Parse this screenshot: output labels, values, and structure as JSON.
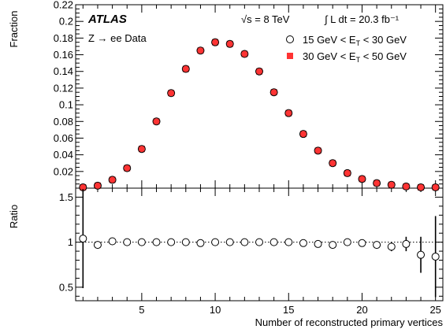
{
  "chart_data": {
    "type": "scatter",
    "experiment_label": "ATLAS",
    "dataset_label": "Z → ee Data",
    "energy_label": "√s = 8 TeV",
    "lumi_label": "∫ L dt = 20.3 fb⁻¹",
    "xlabel": "Number of reconstructed primary vertices",
    "top_panel": {
      "ylabel": "Fraction",
      "xlim": [
        0.5,
        25.5
      ],
      "ylim": [
        0,
        0.22
      ],
      "yticks": [
        "0.02",
        "0.04",
        "0.06",
        "0.08",
        "0.1",
        "0.12",
        "0.14",
        "0.16",
        "0.18",
        "0.2",
        "0.22"
      ],
      "ytick_values": [
        0.02,
        0.04,
        0.06,
        0.08,
        0.1,
        0.12,
        0.14,
        0.16,
        0.18,
        0.2,
        0.22
      ],
      "legend_position": "top-right",
      "series": [
        {
          "name": "15 GeV < E_T < 30 GeV",
          "legend_main": "15 GeV < E",
          "legend_sub": "T",
          "legend_tail": " < 30 GeV",
          "marker": "open-circle",
          "color": "#000000",
          "x": [
            1,
            2,
            3,
            4,
            5,
            6,
            7,
            8,
            9,
            10,
            11,
            12,
            13,
            14,
            15,
            16,
            17,
            18,
            19,
            20,
            21,
            22,
            23,
            24,
            25
          ],
          "values": [
            0.001,
            0.003,
            0.01,
            0.024,
            0.047,
            0.08,
            0.114,
            0.143,
            0.165,
            0.175,
            0.173,
            0.161,
            0.14,
            0.115,
            0.09,
            0.065,
            0.045,
            0.03,
            0.018,
            0.011,
            0.006,
            0.004,
            0.002,
            0.001,
            0.001
          ]
        },
        {
          "name": "30 GeV < E_T < 50 GeV",
          "legend_main": "30 GeV < E",
          "legend_sub": "T",
          "legend_tail": " < 50 GeV",
          "marker": "filled-square",
          "color": "#ff3333",
          "x": [
            1,
            2,
            3,
            4,
            5,
            6,
            7,
            8,
            9,
            10,
            11,
            12,
            13,
            14,
            15,
            16,
            17,
            18,
            19,
            20,
            21,
            22,
            23,
            24,
            25
          ],
          "values": [
            0.001,
            0.003,
            0.01,
            0.024,
            0.047,
            0.08,
            0.114,
            0.143,
            0.165,
            0.175,
            0.173,
            0.161,
            0.14,
            0.115,
            0.09,
            0.065,
            0.045,
            0.03,
            0.018,
            0.011,
            0.006,
            0.004,
            0.002,
            0.001,
            0.001
          ]
        }
      ]
    },
    "bottom_panel": {
      "ylabel": "Ratio",
      "ylim": [
        0.35,
        1.6
      ],
      "yticks": [
        "0.5",
        "1",
        "1.5"
      ],
      "ytick_values": [
        0.5,
        1,
        1.5
      ],
      "xticks": [
        "5",
        "10",
        "15",
        "20",
        "25"
      ],
      "xtick_values": [
        5,
        10,
        15,
        20,
        25
      ],
      "reference_line": 1,
      "ratio": {
        "marker": "open-circle",
        "x": [
          1,
          2,
          3,
          4,
          5,
          6,
          7,
          8,
          9,
          10,
          11,
          12,
          13,
          14,
          15,
          16,
          17,
          18,
          19,
          20,
          21,
          22,
          23,
          24,
          25
        ],
        "values": [
          1.04,
          0.97,
          1.01,
          1.0,
          1.0,
          1.0,
          1.0,
          1.0,
          0.99,
          1.0,
          1.0,
          1.0,
          1.0,
          1.0,
          1.0,
          0.99,
          0.98,
          0.97,
          1.0,
          0.99,
          0.97,
          0.95,
          0.98,
          0.86,
          0.84
        ],
        "errors": [
          0.55,
          0.04,
          0.015,
          0.008,
          0.005,
          0.004,
          0.003,
          0.003,
          0.003,
          0.003,
          0.003,
          0.003,
          0.003,
          0.003,
          0.004,
          0.005,
          0.006,
          0.008,
          0.012,
          0.02,
          0.03,
          0.05,
          0.08,
          0.2,
          0.45
        ]
      }
    }
  }
}
